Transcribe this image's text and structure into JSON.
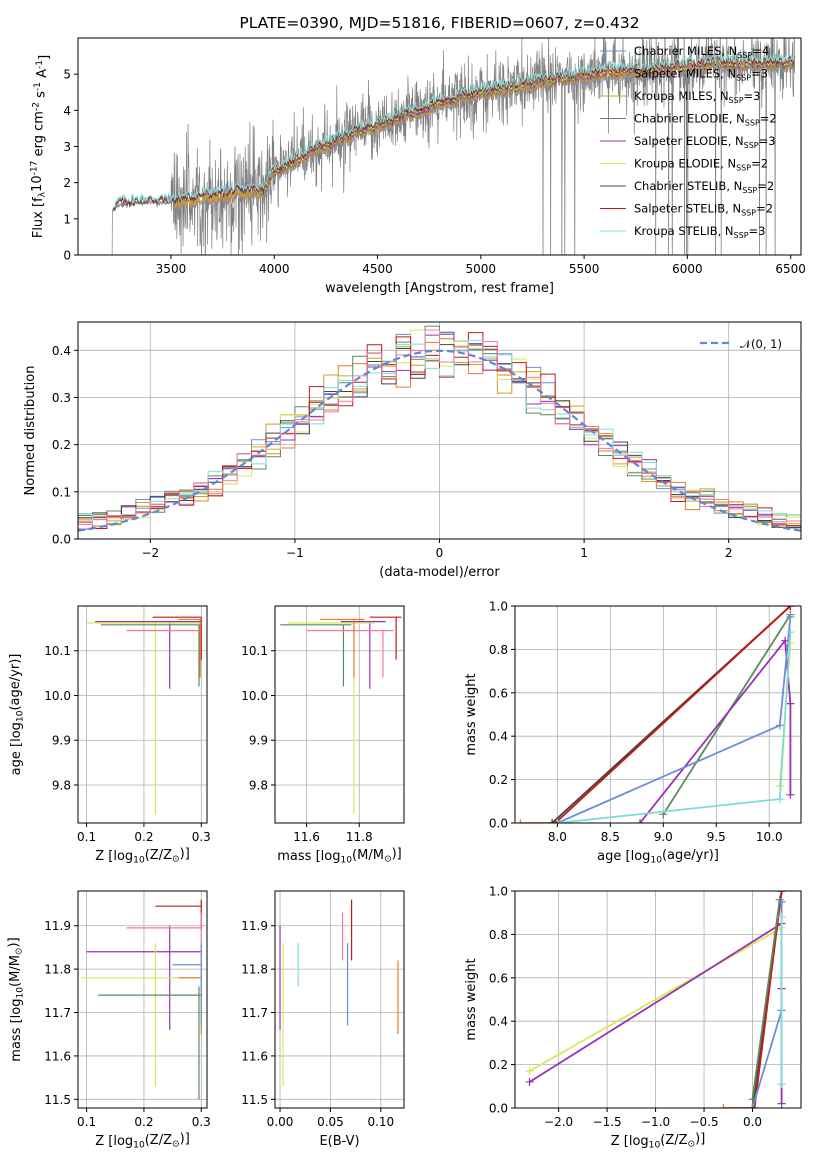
{
  "colors": {
    "chabrier_miles": "#6a8fd8",
    "salpeter_miles": "#e97b2c",
    "kroupa_miles": "#c9a227",
    "chabrier_elodie": "#5c8a5c",
    "salpeter_elodie": "#9b30b4",
    "kroupa_elodie": "#d8e85a",
    "chabrier_stelib": "#444444",
    "salpeter_stelib": "#c41a1a",
    "kroupa_stelib": "#80dcd8",
    "pink": "#f07aa0",
    "data": "#808080",
    "normal": "#5a8ad6"
  },
  "chart_data": [
    {
      "type": "line",
      "id": "spectrum",
      "title": "PLATE=0390, MJD=51816, FIBERID=0607, z=0.432",
      "xlabel": "wavelength [Angstrom, rest frame]",
      "ylabel": "Flux [f$_\\lambda$10$^{-17}$ erg cm$^{-2}$ s$^{-1}$ A$^{-1}$]",
      "xlim": [
        3050,
        6550
      ],
      "ylim": [
        0,
        6
      ],
      "xticks": [
        "3500",
        "4000",
        "4500",
        "5000",
        "5500",
        "6000",
        "6500"
      ],
      "yticks": [
        "0",
        "1",
        "2",
        "3",
        "4",
        "5"
      ],
      "model_trend": {
        "x": [
          3210,
          3250,
          3400,
          3500,
          3600,
          3800,
          3950,
          4000,
          4200,
          4400,
          4600,
          4800,
          5000,
          5200,
          5400,
          5600,
          5800,
          6000,
          6200,
          6400
        ],
        "y": [
          1.2,
          1.4,
          1.45,
          1.45,
          1.55,
          1.7,
          1.8,
          2.3,
          2.9,
          3.4,
          3.8,
          4.2,
          4.5,
          4.7,
          4.9,
          5.05,
          5.1,
          5.2,
          5.3,
          5.3
        ]
      },
      "legend": [
        {
          "label": "Chabrier MILES, N",
          "sub": "SSP",
          "suffix": "=4",
          "color": "chabrier_miles"
        },
        {
          "label": "Salpeter MILES, N",
          "sub": "SSP",
          "suffix": "=3",
          "color": "salpeter_miles"
        },
        {
          "label": "Kroupa MILES, N",
          "sub": "SSP",
          "suffix": "=3",
          "color": "kroupa_miles"
        },
        {
          "label": "Chabrier ELODIE, N",
          "sub": "SSP",
          "suffix": "=2",
          "color": "chabrier_elodie"
        },
        {
          "label": "Salpeter ELODIE, N",
          "sub": "SSP",
          "suffix": "=3",
          "color": "salpeter_elodie"
        },
        {
          "label": "Kroupa ELODIE, N",
          "sub": "SSP",
          "suffix": "=2",
          "color": "kroupa_elodie"
        },
        {
          "label": "Chabrier STELIB, N",
          "sub": "SSP",
          "suffix": "=2",
          "color": "chabrier_stelib"
        },
        {
          "label": "Salpeter STELIB, N",
          "sub": "SSP",
          "suffix": "=2",
          "color": "salpeter_stelib"
        },
        {
          "label": "Kroupa STELIB, N",
          "sub": "SSP",
          "suffix": "=3",
          "color": "kroupa_stelib"
        }
      ]
    },
    {
      "type": "line",
      "id": "residuals",
      "xlabel": "(data-model)/error",
      "ylabel": "Normed distribution",
      "xlim": [
        -2.5,
        2.5
      ],
      "ylim": [
        0,
        0.46
      ],
      "xticks": [
        "−2",
        "−1",
        "0",
        "1",
        "2"
      ],
      "yticks": [
        "0.0",
        "0.1",
        "0.2",
        "0.3",
        "0.4"
      ],
      "legend": [
        {
          "label": "𝒩(0, 1)",
          "color": "normal"
        }
      ],
      "bin_width": 0.1,
      "bin_start": -2.5
    },
    {
      "type": "scatter",
      "id": "age_vs_Z",
      "xlabel": "Z [log$_{10}$(Z/Z$_\\odot$)]",
      "ylabel": "age  [log$_{10}$(age/yr)]",
      "xlim": [
        0.085,
        0.31
      ],
      "ylim": [
        9.715,
        10.2
      ],
      "xticks": [
        "0.1",
        "0.2",
        "0.3"
      ],
      "yticks": [
        "9.8",
        "9.9",
        "10.0",
        "10.1"
      ],
      "points": [
        {
          "color": "salpeter_stelib",
          "x": 0.3,
          "y": 10.175,
          "xerr": [
            0.215,
            0.3
          ],
          "yerr": [
            10.08,
            10.175
          ]
        },
        {
          "color": "salpeter_elodie",
          "x": 0.245,
          "y": 10.165,
          "xerr": [
            0.115,
            0.3
          ],
          "yerr": [
            10.015,
            10.165
          ]
        },
        {
          "color": "kroupa_elodie",
          "x": 0.22,
          "y": 10.162,
          "xerr": [
            0.1,
            0.3
          ],
          "yerr": [
            9.735,
            10.162
          ]
        },
        {
          "color": "chabrier_elodie",
          "x": 0.296,
          "y": 10.158,
          "xerr": [
            0.125,
            0.3
          ],
          "yerr": [
            10.02,
            10.158
          ]
        },
        {
          "color": "pink",
          "x": 0.298,
          "y": 10.145,
          "xerr": [
            0.17,
            0.3
          ],
          "yerr": [
            10.06,
            10.145
          ]
        },
        {
          "color": "salpeter_miles",
          "x": 0.298,
          "y": 10.17,
          "xerr": [
            0.26,
            0.3
          ],
          "yerr": [
            10.04,
            10.17
          ]
        }
      ]
    },
    {
      "type": "scatter",
      "id": "age_vs_mass",
      "xlabel": "mass [log$_{10}$(M/M$_\\odot$)]",
      "ylabel": "",
      "xlim": [
        11.48,
        11.97
      ],
      "ylim": [
        9.715,
        10.2
      ],
      "xticks": [
        "11.6",
        "11.8"
      ],
      "yticks": [
        "9.8",
        "9.9",
        "10.0",
        "10.1"
      ],
      "points": [
        {
          "color": "salpeter_stelib",
          "x": 11.94,
          "y": 10.175,
          "xerr": [
            11.84,
            11.96
          ],
          "yerr": [
            10.08,
            10.175
          ]
        },
        {
          "color": "salpeter_elodie",
          "x": 11.84,
          "y": 10.165,
          "xerr": [
            11.73,
            11.9
          ],
          "yerr": [
            10.015,
            10.165
          ]
        },
        {
          "color": "kroupa_elodie",
          "x": 11.78,
          "y": 10.162,
          "xerr": [
            11.53,
            11.86
          ],
          "yerr": [
            9.735,
            10.162
          ]
        },
        {
          "color": "chabrier_elodie",
          "x": 11.74,
          "y": 10.158,
          "xerr": [
            11.5,
            11.77
          ],
          "yerr": [
            10.02,
            10.158
          ]
        },
        {
          "color": "pink",
          "x": 11.89,
          "y": 10.145,
          "xerr": [
            11.6,
            11.93
          ],
          "yerr": [
            10.04,
            10.145
          ]
        },
        {
          "color": "salpeter_miles",
          "x": 11.78,
          "y": 10.17,
          "xerr": [
            11.65,
            11.82
          ],
          "yerr": [
            10.04,
            10.17
          ]
        }
      ]
    },
    {
      "type": "line",
      "id": "weight_vs_age",
      "xlabel": "age  [log$_{10}$(age/yr)]",
      "ylabel": "mass weight",
      "xlim": [
        7.6,
        10.3
      ],
      "ylim": [
        0,
        1
      ],
      "xticks": [
        "8.0",
        "8.5",
        "9.0",
        "9.5",
        "10.0"
      ],
      "yticks": [
        "0.0",
        "0.2",
        "0.4",
        "0.6",
        "0.8",
        "1.0"
      ],
      "series": [
        {
          "color": "salpeter_miles",
          "x": [
            7.65,
            7.95,
            10.2
          ],
          "y": [
            0.0,
            0.0,
            1.0
          ]
        },
        {
          "color": "chabrier_stelib",
          "x": [
            7.95,
            10.2
          ],
          "y": [
            0.0,
            1.0
          ]
        },
        {
          "color": "salpeter_stelib",
          "x": [
            7.98,
            10.2
          ],
          "y": [
            0.0,
            1.0
          ]
        },
        {
          "color": "chabrier_elodie",
          "x": [
            9.0,
            10.2
          ],
          "y": [
            0.04,
            0.96
          ]
        },
        {
          "color": "salpeter_elodie",
          "x": [
            8.78,
            10.15,
            10.2,
            10.2
          ],
          "y": [
            0.0,
            0.84,
            0.55,
            0.13
          ]
        },
        {
          "color": "chabrier_miles",
          "x": [
            8.0,
            10.1,
            10.2
          ],
          "y": [
            0.0,
            0.45,
            0.95
          ]
        },
        {
          "color": "kroupa_elodie",
          "x": [
            10.1,
            10.2
          ],
          "y": [
            0.17,
            0.83
          ]
        },
        {
          "color": "kroupa_stelib",
          "x": [
            8.0,
            10.1,
            10.2
          ],
          "y": [
            0.0,
            0.11,
            0.88
          ]
        }
      ]
    },
    {
      "type": "scatter",
      "id": "mass_vs_Z",
      "xlabel": "Z [log$_{10}$(Z/Z$_\\odot$)]",
      "ylabel": "mass [log$_{10}$(M/M$_\\odot$)]",
      "xlim": [
        0.085,
        0.31
      ],
      "ylim": [
        11.48,
        11.98
      ],
      "xticks": [
        "0.1",
        "0.2",
        "0.3"
      ],
      "yticks": [
        "11.5",
        "11.6",
        "11.7",
        "11.8",
        "11.9"
      ],
      "points": [
        {
          "color": "salpeter_stelib",
          "x": 0.3,
          "y": 11.945,
          "xerr": [
            0.22,
            0.3
          ],
          "yerr": [
            11.89,
            11.96
          ]
        },
        {
          "color": "salpeter_elodie",
          "x": 0.245,
          "y": 11.84,
          "xerr": [
            0.1,
            0.3
          ],
          "yerr": [
            11.66,
            11.9
          ]
        },
        {
          "color": "kroupa_elodie",
          "x": 0.22,
          "y": 11.78,
          "xerr": [
            0.09,
            0.3
          ],
          "yerr": [
            11.53,
            11.86
          ]
        },
        {
          "color": "chabrier_elodie",
          "x": 0.296,
          "y": 11.74,
          "xerr": [
            0.12,
            0.3
          ],
          "yerr": [
            11.5,
            11.76
          ]
        },
        {
          "color": "pink",
          "x": 0.3,
          "y": 11.895,
          "xerr": [
            0.17,
            0.3
          ],
          "yerr": [
            11.82,
            11.93
          ]
        },
        {
          "color": "salpeter_miles",
          "x": 0.3,
          "y": 11.78,
          "xerr": [
            0.26,
            0.3
          ],
          "yerr": [
            11.65,
            11.82
          ]
        },
        {
          "color": "chabrier_miles",
          "x": 0.3,
          "y": 11.81,
          "xerr": [
            0.25,
            0.3
          ],
          "yerr": [
            11.67,
            11.86
          ]
        }
      ]
    },
    {
      "type": "scatter",
      "id": "mass_vs_ebv",
      "xlabel": "E(B-V)",
      "ylabel": "",
      "xlim": [
        -0.005,
        0.123
      ],
      "ylim": [
        11.48,
        11.98
      ],
      "xticks": [
        "0.00",
        "0.05",
        "0.10"
      ],
      "yticks": [
        "11.5",
        "11.6",
        "11.7",
        "11.8",
        "11.9"
      ],
      "points": [
        {
          "color": "salpeter_elodie",
          "x": 0.0,
          "y": 11.84,
          "yerr": [
            11.66,
            11.9
          ]
        },
        {
          "color": "kroupa_elodie",
          "x": 0.003,
          "y": 11.78,
          "yerr": [
            11.53,
            11.86
          ]
        },
        {
          "color": "kroupa_stelib",
          "x": 0.018,
          "y": 11.81,
          "yerr": [
            11.76,
            11.86
          ]
        },
        {
          "color": "pink",
          "x": 0.062,
          "y": 11.895,
          "yerr": [
            11.82,
            11.93
          ]
        },
        {
          "color": "chabrier_miles",
          "x": 0.067,
          "y": 11.81,
          "yerr": [
            11.67,
            11.86
          ]
        },
        {
          "color": "salpeter_stelib",
          "x": 0.071,
          "y": 11.9,
          "yerr": [
            11.82,
            11.96
          ]
        },
        {
          "color": "salpeter_miles",
          "x": 0.117,
          "y": 11.78,
          "yerr": [
            11.65,
            11.82
          ]
        }
      ]
    },
    {
      "type": "line",
      "id": "weight_vs_Z",
      "xlabel": "Z [log$_{10}$(Z/Z$_\\odot$)]",
      "ylabel": "mass weight",
      "xlim": [
        -2.45,
        0.5
      ],
      "ylim": [
        0,
        1
      ],
      "xticks": [
        "−2.0",
        "−1.5",
        "−1.0",
        "−0.5",
        "0.0"
      ],
      "yticks": [
        "0.0",
        "0.2",
        "0.4",
        "0.6",
        "0.8",
        "1.0"
      ],
      "series": [
        {
          "color": "kroupa_elodie",
          "x": [
            -2.3,
            0.3
          ],
          "y": [
            0.17,
            0.83
          ]
        },
        {
          "color": "salpeter_elodie",
          "x": [
            -2.3,
            0.3,
            0.3,
            0.3
          ],
          "y": [
            0.12,
            0.85,
            0.55,
            0.02
          ]
        },
        {
          "color": "salpeter_miles",
          "x": [
            -0.3,
            0.0,
            0.3
          ],
          "y": [
            0.0,
            0.0,
            1.0
          ]
        },
        {
          "color": "chabrier_stelib",
          "x": [
            0.0,
            0.3
          ],
          "y": [
            0.0,
            1.0
          ]
        },
        {
          "color": "salpeter_stelib",
          "x": [
            0.02,
            0.3
          ],
          "y": [
            0.0,
            1.0
          ]
        },
        {
          "color": "chabrier_elodie",
          "x": [
            0.0,
            0.28
          ],
          "y": [
            0.04,
            0.96
          ]
        },
        {
          "color": "chabrier_miles",
          "x": [
            0.0,
            0.3,
            0.3
          ],
          "y": [
            0.0,
            0.45,
            0.95
          ]
        },
        {
          "color": "kroupa_stelib",
          "x": [
            0.3,
            0.3
          ],
          "y": [
            0.11,
            0.88
          ]
        }
      ]
    }
  ]
}
